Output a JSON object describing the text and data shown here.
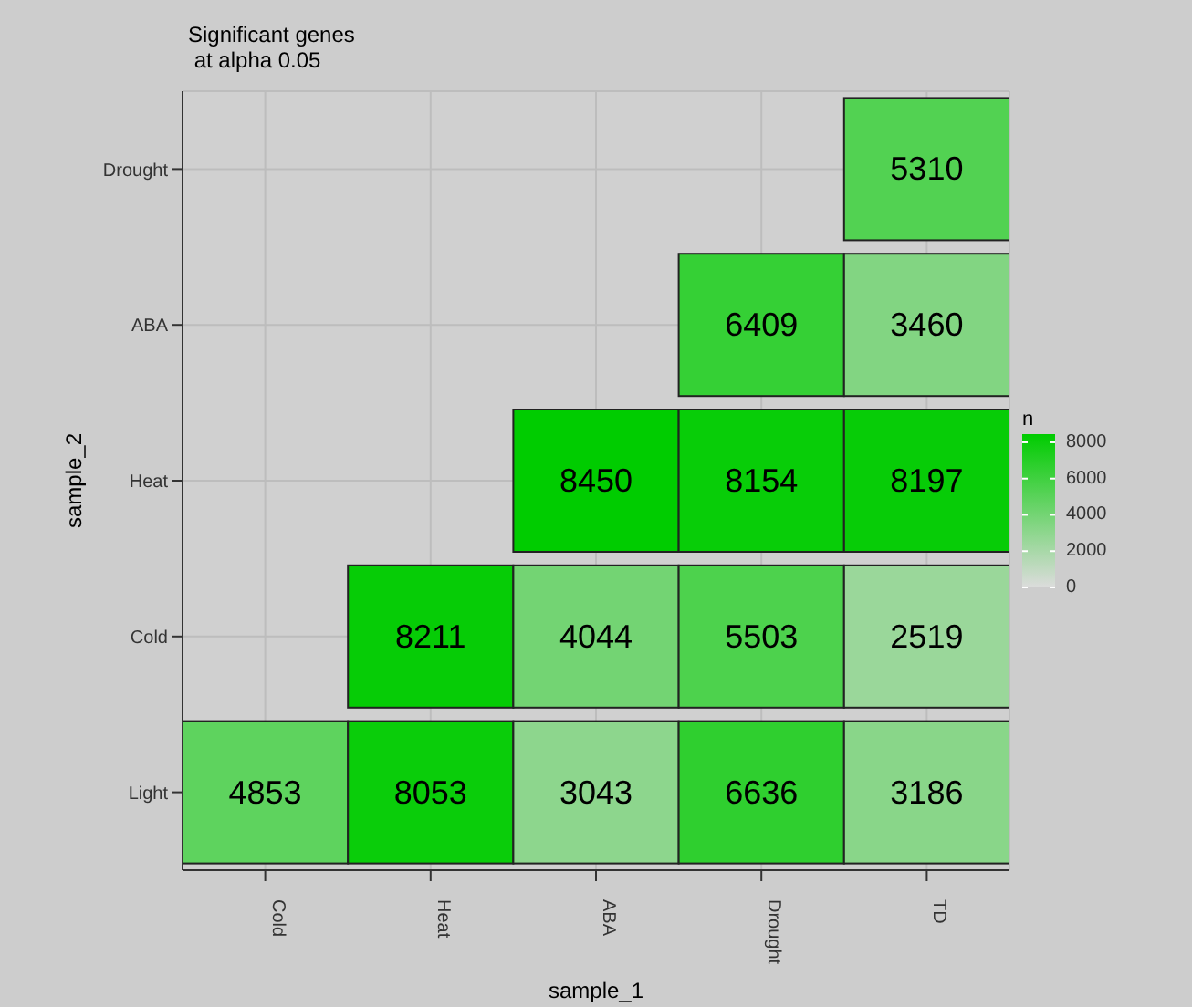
{
  "chart_data": {
    "type": "heatmap",
    "title": "Significant genes\n at alpha 0.05",
    "xlabel": "sample_1",
    "ylabel": "sample_2",
    "legend_title": "n",
    "categories": [
      "Cold",
      "Heat",
      "ABA",
      "Drought",
      "TD"
    ],
    "y_categories": [
      "Drought",
      "ABA",
      "Heat",
      "Cold",
      "Light"
    ],
    "cells": [
      [
        null,
        null,
        null,
        null,
        5310
      ],
      [
        null,
        null,
        null,
        6409,
        3460
      ],
      [
        null,
        null,
        8450,
        8154,
        8197
      ],
      [
        null,
        8211,
        4044,
        5503,
        2519
      ],
      [
        4853,
        8053,
        3043,
        6636,
        3186
      ]
    ],
    "data_labels": true,
    "grid": true,
    "clim": [
      0,
      8450
    ],
    "cticks": [
      0,
      2000,
      4000,
      6000,
      8000
    ],
    "colors": [
      "#dcdcdc",
      "#00cc00"
    ]
  }
}
